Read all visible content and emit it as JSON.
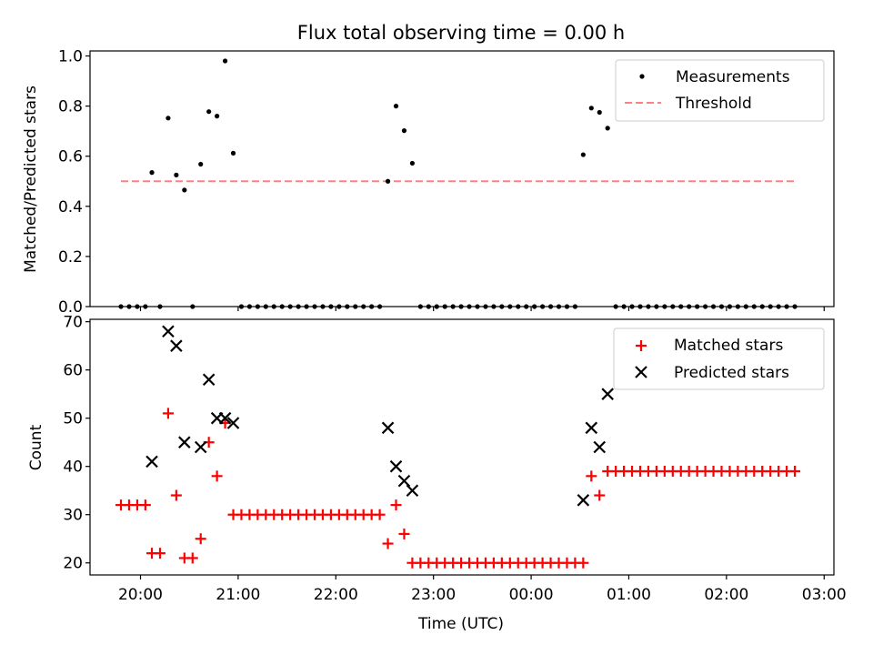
{
  "figure": {
    "title": "Flux total observing time = 0.00 h",
    "xlabel": "Time (UTC)"
  },
  "chart_data": [
    {
      "type": "scatter",
      "ylabel": "Matched/Predicted stars",
      "ylim": [
        0.0,
        1.02
      ],
      "xlim": [
        "19:29",
        "03:06"
      ],
      "xticks": [
        "20:00",
        "21:00",
        "22:00",
        "23:00",
        "00:00",
        "01:00",
        "02:00",
        "03:00"
      ],
      "yticks": [
        "0.0",
        "0.2",
        "0.4",
        "0.6",
        "0.8",
        "1.0"
      ],
      "legend": {
        "placement": "top-right"
      },
      "series": [
        {
          "name": "Measurements",
          "kind": "dot",
          "color": "#000000",
          "points": [
            [
              "19:48",
              0.0
            ],
            [
              "19:53",
              0.0
            ],
            [
              "19:58",
              0.0
            ],
            [
              "20:03",
              0.0
            ],
            [
              "20:07",
              0.535
            ],
            [
              "20:12",
              0.0
            ],
            [
              "20:17",
              0.752
            ],
            [
              "20:22",
              0.525
            ],
            [
              "20:27",
              0.465
            ],
            [
              "20:32",
              0.0
            ],
            [
              "20:37",
              0.568
            ],
            [
              "20:42",
              0.778
            ],
            [
              "20:47",
              0.76
            ],
            [
              "20:52",
              0.98
            ],
            [
              "20:57",
              0.612
            ],
            [
              "21:02",
              0.0
            ],
            [
              "21:07",
              0.0
            ],
            [
              "21:12",
              0.0
            ],
            [
              "21:17",
              0.0
            ],
            [
              "21:22",
              0.0
            ],
            [
              "21:27",
              0.0
            ],
            [
              "21:32",
              0.0
            ],
            [
              "21:37",
              0.0
            ],
            [
              "21:42",
              0.0
            ],
            [
              "21:47",
              0.0
            ],
            [
              "21:52",
              0.0
            ],
            [
              "21:57",
              0.0
            ],
            [
              "22:02",
              0.0
            ],
            [
              "22:07",
              0.0
            ],
            [
              "22:12",
              0.0
            ],
            [
              "22:17",
              0.0
            ],
            [
              "22:22",
              0.0
            ],
            [
              "22:27",
              0.0
            ],
            [
              "22:32",
              0.5
            ],
            [
              "22:37",
              0.8
            ],
            [
              "22:42",
              0.702
            ],
            [
              "22:47",
              0.572
            ],
            [
              "22:52",
              0.0
            ],
            [
              "22:57",
              0.0
            ],
            [
              "23:02",
              0.0
            ],
            [
              "23:07",
              0.0
            ],
            [
              "23:12",
              0.0
            ],
            [
              "23:17",
              0.0
            ],
            [
              "23:22",
              0.0
            ],
            [
              "23:27",
              0.0
            ],
            [
              "23:32",
              0.0
            ],
            [
              "23:37",
              0.0
            ],
            [
              "23:42",
              0.0
            ],
            [
              "23:47",
              0.0
            ],
            [
              "23:52",
              0.0
            ],
            [
              "23:57",
              0.0
            ],
            [
              "00:02",
              0.0
            ],
            [
              "00:07",
              0.0
            ],
            [
              "00:12",
              0.0
            ],
            [
              "00:17",
              0.0
            ],
            [
              "00:22",
              0.0
            ],
            [
              "00:27",
              0.0
            ],
            [
              "00:32",
              0.606
            ],
            [
              "00:37",
              0.792
            ],
            [
              "00:42",
              0.775
            ],
            [
              "00:47",
              0.712
            ],
            [
              "00:52",
              0.0
            ],
            [
              "00:57",
              0.0
            ],
            [
              "01:02",
              0.0
            ],
            [
              "01:07",
              0.0
            ],
            [
              "01:12",
              0.0
            ],
            [
              "01:17",
              0.0
            ],
            [
              "01:22",
              0.0
            ],
            [
              "01:27",
              0.0
            ],
            [
              "01:32",
              0.0
            ],
            [
              "01:37",
              0.0
            ],
            [
              "01:42",
              0.0
            ],
            [
              "01:47",
              0.0
            ],
            [
              "01:52",
              0.0
            ],
            [
              "01:57",
              0.0
            ],
            [
              "02:02",
              0.0
            ],
            [
              "02:07",
              0.0
            ],
            [
              "02:12",
              0.0
            ],
            [
              "02:17",
              0.0
            ],
            [
              "02:22",
              0.0
            ],
            [
              "02:27",
              0.0
            ],
            [
              "02:32",
              0.0
            ],
            [
              "02:37",
              0.0
            ],
            [
              "02:42",
              0.0
            ]
          ]
        },
        {
          "name": "Threshold",
          "kind": "dashed-line",
          "color": "#ff8080",
          "points": [
            [
              "19:48",
              0.5
            ],
            [
              "02:42",
              0.5
            ]
          ]
        }
      ]
    },
    {
      "type": "scatter",
      "ylabel": "Count",
      "ylim": [
        17.5,
        70.5
      ],
      "xlim": [
        "19:29",
        "03:06"
      ],
      "xticks": [
        "20:00",
        "21:00",
        "22:00",
        "23:00",
        "00:00",
        "01:00",
        "02:00",
        "03:00"
      ],
      "yticks": [
        "20",
        "30",
        "40",
        "50",
        "60",
        "70"
      ],
      "legend": {
        "placement": "top-right"
      },
      "series": [
        {
          "name": "Matched stars",
          "kind": "plus",
          "color": "#ff0000",
          "points": [
            [
              "19:48",
              32
            ],
            [
              "19:53",
              32
            ],
            [
              "19:58",
              32
            ],
            [
              "20:03",
              32
            ],
            [
              "20:07",
              22
            ],
            [
              "20:12",
              22
            ],
            [
              "20:17",
              51
            ],
            [
              "20:22",
              34
            ],
            [
              "20:27",
              21
            ],
            [
              "20:32",
              21
            ],
            [
              "20:37",
              25
            ],
            [
              "20:42",
              45
            ],
            [
              "20:47",
              38
            ],
            [
              "20:52",
              49
            ],
            [
              "20:57",
              30
            ],
            [
              "21:02",
              30
            ],
            [
              "21:07",
              30
            ],
            [
              "21:12",
              30
            ],
            [
              "21:17",
              30
            ],
            [
              "21:22",
              30
            ],
            [
              "21:27",
              30
            ],
            [
              "21:32",
              30
            ],
            [
              "21:37",
              30
            ],
            [
              "21:42",
              30
            ],
            [
              "21:47",
              30
            ],
            [
              "21:52",
              30
            ],
            [
              "21:57",
              30
            ],
            [
              "22:02",
              30
            ],
            [
              "22:07",
              30
            ],
            [
              "22:12",
              30
            ],
            [
              "22:17",
              30
            ],
            [
              "22:22",
              30
            ],
            [
              "22:27",
              30
            ],
            [
              "22:32",
              24
            ],
            [
              "22:37",
              32
            ],
            [
              "22:42",
              26
            ],
            [
              "22:47",
              20
            ],
            [
              "22:52",
              20
            ],
            [
              "22:57",
              20
            ],
            [
              "23:02",
              20
            ],
            [
              "23:07",
              20
            ],
            [
              "23:12",
              20
            ],
            [
              "23:17",
              20
            ],
            [
              "23:22",
              20
            ],
            [
              "23:27",
              20
            ],
            [
              "23:32",
              20
            ],
            [
              "23:37",
              20
            ],
            [
              "23:42",
              20
            ],
            [
              "23:47",
              20
            ],
            [
              "23:52",
              20
            ],
            [
              "23:57",
              20
            ],
            [
              "00:02",
              20
            ],
            [
              "00:07",
              20
            ],
            [
              "00:12",
              20
            ],
            [
              "00:17",
              20
            ],
            [
              "00:22",
              20
            ],
            [
              "00:27",
              20
            ],
            [
              "00:32",
              20
            ],
            [
              "00:37",
              38
            ],
            [
              "00:42",
              34
            ],
            [
              "00:47",
              39
            ],
            [
              "00:52",
              39
            ],
            [
              "00:57",
              39
            ],
            [
              "01:02",
              39
            ],
            [
              "01:07",
              39
            ],
            [
              "01:12",
              39
            ],
            [
              "01:17",
              39
            ],
            [
              "01:22",
              39
            ],
            [
              "01:27",
              39
            ],
            [
              "01:32",
              39
            ],
            [
              "01:37",
              39
            ],
            [
              "01:42",
              39
            ],
            [
              "01:47",
              39
            ],
            [
              "01:52",
              39
            ],
            [
              "01:57",
              39
            ],
            [
              "02:02",
              39
            ],
            [
              "02:07",
              39
            ],
            [
              "02:12",
              39
            ],
            [
              "02:17",
              39
            ],
            [
              "02:22",
              39
            ],
            [
              "02:27",
              39
            ],
            [
              "02:32",
              39
            ],
            [
              "02:37",
              39
            ],
            [
              "02:42",
              39
            ]
          ]
        },
        {
          "name": "Predicted stars",
          "kind": "cross",
          "color": "#000000",
          "points": [
            [
              "20:07",
              41
            ],
            [
              "20:17",
              68
            ],
            [
              "20:22",
              65
            ],
            [
              "20:27",
              45
            ],
            [
              "20:37",
              44
            ],
            [
              "20:42",
              58
            ],
            [
              "20:47",
              50
            ],
            [
              "20:52",
              50
            ],
            [
              "20:57",
              49
            ],
            [
              "22:32",
              48
            ],
            [
              "22:37",
              40
            ],
            [
              "22:42",
              37
            ],
            [
              "22:47",
              35
            ],
            [
              "00:32",
              33
            ],
            [
              "00:37",
              48
            ],
            [
              "00:42",
              44
            ],
            [
              "00:47",
              55
            ]
          ]
        }
      ]
    }
  ]
}
